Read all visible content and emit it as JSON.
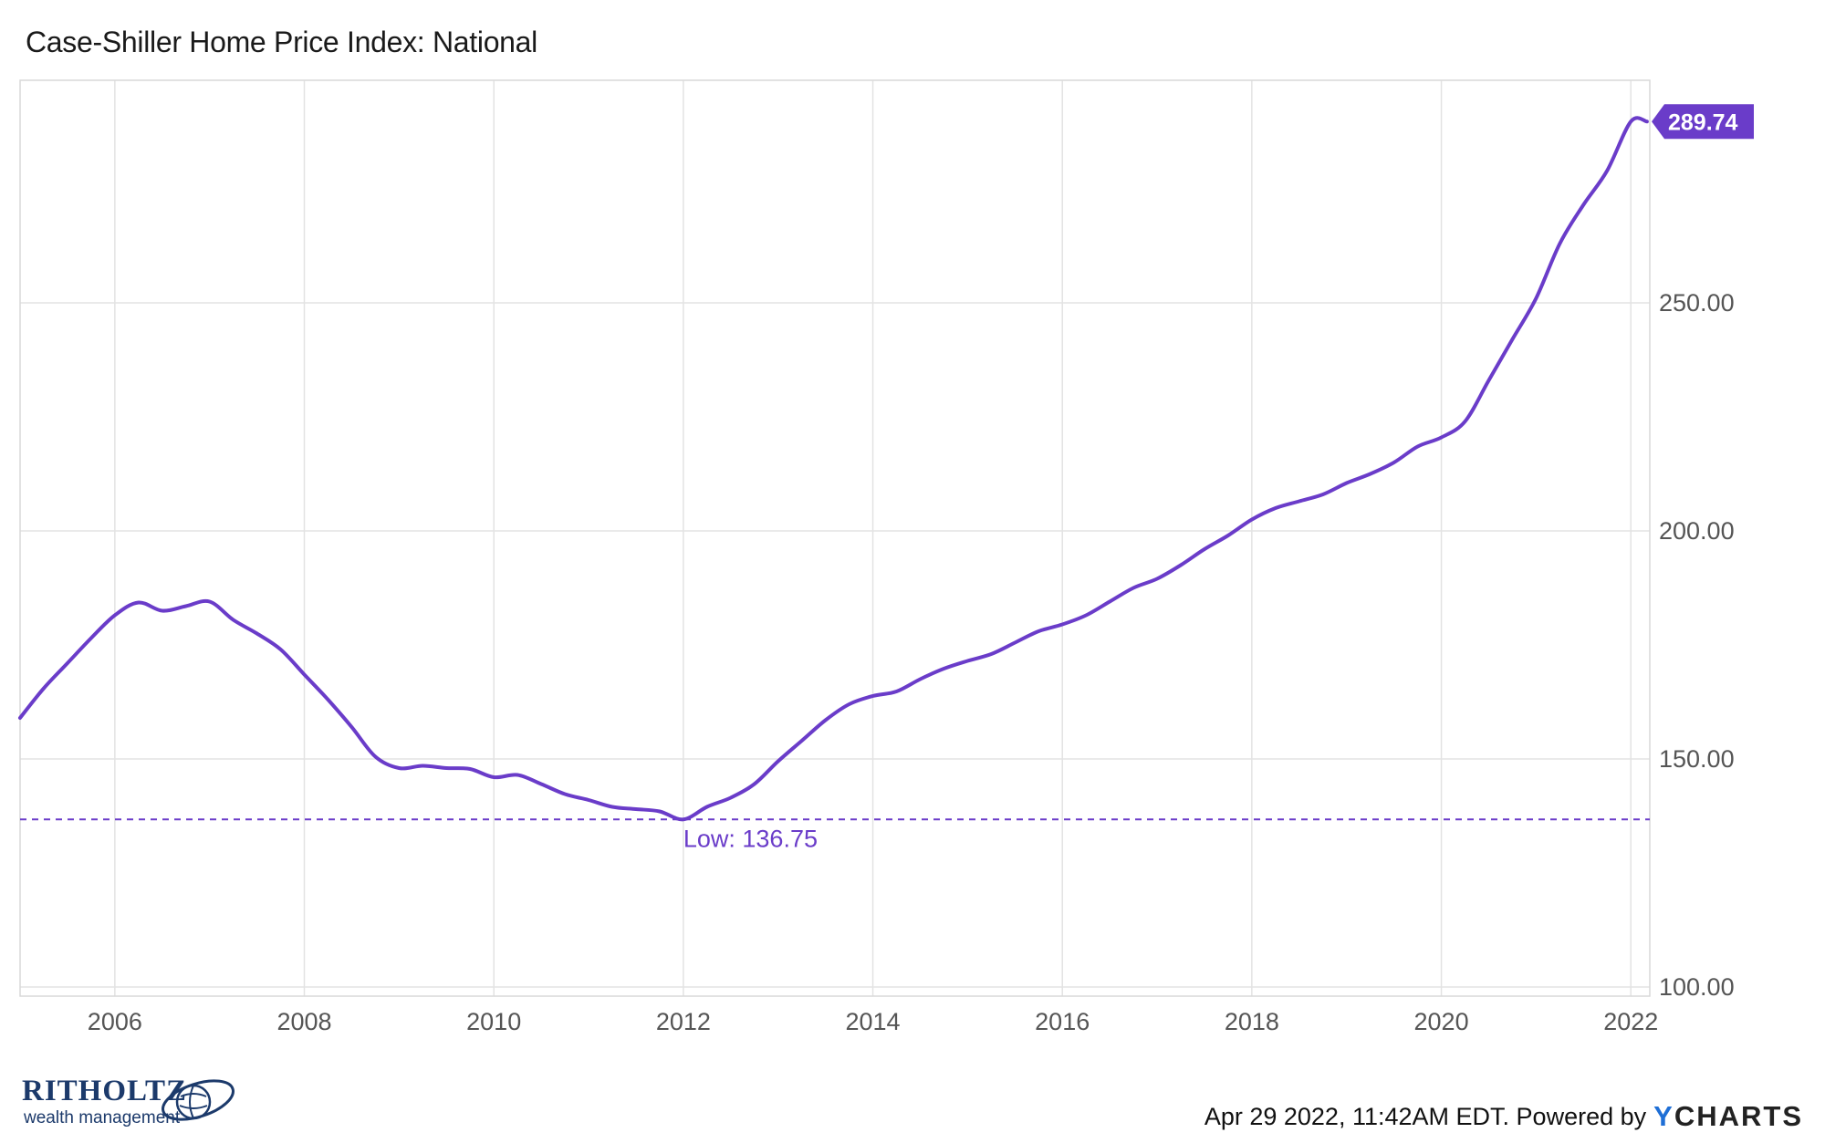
{
  "title": "Case-Shiller Home Price Index: National",
  "logo": {
    "name": "RITHOLTZ",
    "sub": "wealth management"
  },
  "footer": {
    "timestamp": "Apr 29 2022, 11:42AM EDT.",
    "powered_by": "Powered by",
    "brand_y": "Y",
    "brand_rest": "CHARTS"
  },
  "colors": {
    "series": "#6a3cc9",
    "grid": "#e3e3e3",
    "axis_text": "#555555"
  },
  "chart_data": {
    "type": "line",
    "title": "Case-Shiller Home Price Index: National",
    "xlabel": "",
    "ylabel": "",
    "xlim": [
      2005.0,
      2022.2
    ],
    "ylim": [
      98,
      298.8
    ],
    "x_ticks": [
      "2006",
      "2008",
      "2010",
      "2012",
      "2014",
      "2016",
      "2018",
      "2020",
      "2022"
    ],
    "y_ticks": [
      "100.00",
      "150.00",
      "200.00",
      "250.00"
    ],
    "y_axis_side": "right",
    "grid": true,
    "last_value_label": "289.74",
    "low_line": {
      "value": 136.75,
      "label": "Low: 136.75"
    },
    "series": [
      {
        "x": [
          2005.0,
          2005.25,
          2005.5,
          2005.75,
          2006.0,
          2006.25,
          2006.5,
          2006.75,
          2007.0,
          2007.25,
          2007.5,
          2007.75,
          2008.0,
          2008.25,
          2008.5,
          2008.75,
          2009.0,
          2009.25,
          2009.5,
          2009.75,
          2010.0,
          2010.25,
          2010.5,
          2010.75,
          2011.0,
          2011.25,
          2011.5,
          2011.75,
          2012.0,
          2012.25,
          2012.5,
          2012.75,
          2013.0,
          2013.25,
          2013.5,
          2013.75,
          2014.0,
          2014.25,
          2014.5,
          2014.75,
          2015.0,
          2015.25,
          2015.5,
          2015.75,
          2016.0,
          2016.25,
          2016.5,
          2016.75,
          2017.0,
          2017.25,
          2017.5,
          2017.75,
          2018.0,
          2018.25,
          2018.5,
          2018.75,
          2019.0,
          2019.25,
          2019.5,
          2019.75,
          2020.0,
          2020.25,
          2020.5,
          2020.75,
          2021.0,
          2021.25,
          2021.5,
          2021.75,
          2022.0,
          2022.17
        ],
        "values": [
          159.0,
          165.5,
          171.0,
          176.5,
          181.5,
          184.3,
          182.5,
          183.5,
          184.5,
          180.5,
          177.5,
          174.0,
          168.5,
          163.0,
          157.0,
          150.5,
          148.0,
          148.5,
          148.0,
          147.8,
          146.0,
          146.5,
          144.5,
          142.3,
          141.0,
          139.5,
          139.0,
          138.5,
          136.75,
          139.5,
          141.5,
          144.5,
          149.5,
          154.0,
          158.5,
          162.0,
          163.8,
          164.8,
          167.5,
          169.8,
          171.5,
          173.0,
          175.5,
          178.0,
          179.5,
          181.5,
          184.5,
          187.5,
          189.5,
          192.5,
          196.0,
          199.0,
          202.5,
          205.0,
          206.5,
          208.0,
          210.5,
          212.5,
          215.0,
          218.5,
          220.5,
          224.0,
          233.0,
          242.0,
          251.0,
          263.0,
          271.5,
          279.0,
          289.74,
          289.74
        ]
      }
    ]
  }
}
